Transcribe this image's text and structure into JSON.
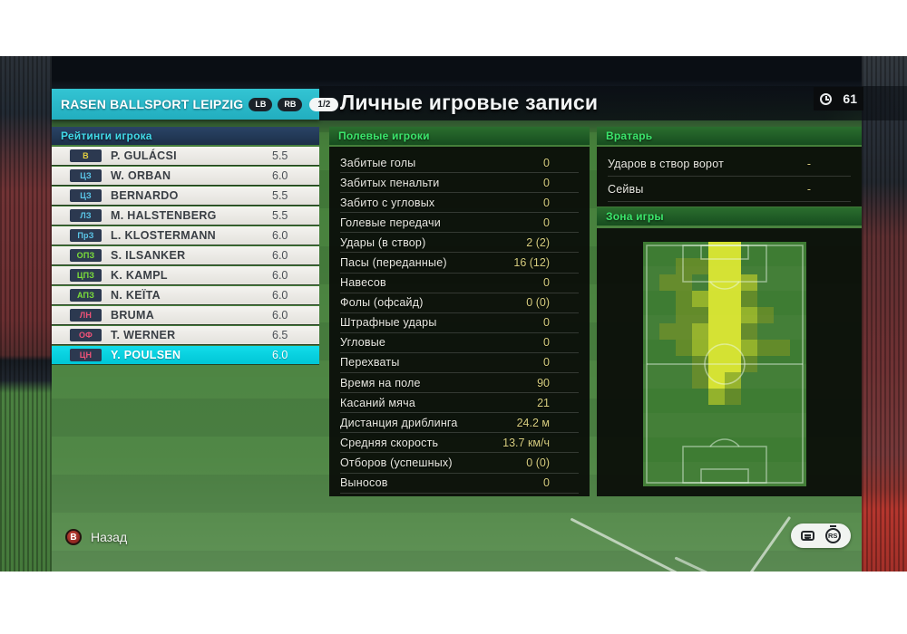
{
  "meta": {
    "match_minute": "61"
  },
  "page_title": "Личные игровые записи",
  "colors": {
    "accent_teal": "#2abccb",
    "selected_row": "#0fd7e6",
    "value_yellow": "#d6cd7f",
    "section_green_text": "#3be56b",
    "ratings_cyan_text": "#41d9e8",
    "badge_bg": "#2c3950",
    "pos_goalkeeper": "#e6d13f",
    "pos_defender": "#5bc6e8",
    "pos_midfielder": "#7de03a",
    "pos_forward": "#ef5277"
  },
  "team_panel": {
    "team_name": "RASEN BALLSPORT LEIPZIG",
    "prev_button": "LB",
    "next_button": "RB",
    "page_indicator": "1/2",
    "section_title": "Рейтинги игрока",
    "players": [
      {
        "pos": "В",
        "pos_color": "#e6d13f",
        "name": "P. GULÁCSI",
        "rating": "5.5",
        "selected": false
      },
      {
        "pos": "ЦЗ",
        "pos_color": "#5bc6e8",
        "name": "W. ORBAN",
        "rating": "6.0",
        "selected": false
      },
      {
        "pos": "ЦЗ",
        "pos_color": "#5bc6e8",
        "name": "BERNARDO",
        "rating": "5.5",
        "selected": false
      },
      {
        "pos": "ЛЗ",
        "pos_color": "#5bc6e8",
        "name": "M. HALSTENBERG",
        "rating": "5.5",
        "selected": false
      },
      {
        "pos": "ПрЗ",
        "pos_color": "#5bc6e8",
        "name": "L. KLOSTERMANN",
        "rating": "6.0",
        "selected": false
      },
      {
        "pos": "ОПЗ",
        "pos_color": "#7de03a",
        "name": "S. ILSANKER",
        "rating": "6.0",
        "selected": false
      },
      {
        "pos": "ЦПЗ",
        "pos_color": "#7de03a",
        "name": "K. KAMPL",
        "rating": "6.0",
        "selected": false
      },
      {
        "pos": "АПЗ",
        "pos_color": "#7de03a",
        "name": "N. KEÏTA",
        "rating": "6.0",
        "selected": false
      },
      {
        "pos": "ЛН",
        "pos_color": "#ef5277",
        "name": "BRUMA",
        "rating": "6.0",
        "selected": false
      },
      {
        "pos": "ОФ",
        "pos_color": "#ef5277",
        "name": "T. WERNER",
        "rating": "6.5",
        "selected": false
      },
      {
        "pos": "ЦН",
        "pos_color": "#ef5277",
        "name": "Y. POULSEN",
        "rating": "6.0",
        "selected": true
      }
    ]
  },
  "field_stats": {
    "section_title": "Полевые игроки",
    "rows": [
      {
        "label": "Забитые голы",
        "value": "0"
      },
      {
        "label": "Забитых пенальти",
        "value": "0"
      },
      {
        "label": "Забито с угловых",
        "value": "0"
      },
      {
        "label": "Голевые передачи",
        "value": "0"
      },
      {
        "label": "Удары (в створ)",
        "value": "2 (2)"
      },
      {
        "label": "Пасы (переданные)",
        "value": "16 (12)"
      },
      {
        "label": "Навесов",
        "value": "0"
      },
      {
        "label": "Фолы (офсайд)",
        "value": "0 (0)"
      },
      {
        "label": "Штрафные удары",
        "value": "0"
      },
      {
        "label": "Угловые",
        "value": "0"
      },
      {
        "label": "Перехваты",
        "value": "0"
      },
      {
        "label": "Время на поле",
        "value": "90"
      },
      {
        "label": "Касаний мяча",
        "value": "21"
      },
      {
        "label": "Дистанция дриблинга",
        "value": "24.2 м"
      },
      {
        "label": "Средняя скорость",
        "value": "13.7 км/ч"
      },
      {
        "label": "Отборов (успешных)",
        "value": "0 (0)"
      },
      {
        "label": "Выносов",
        "value": "0"
      }
    ]
  },
  "gk_stats": {
    "section_title": "Вратарь",
    "rows": [
      {
        "label": "Ударов в створ ворот",
        "value": "-"
      },
      {
        "label": "Сейвы",
        "value": "-"
      }
    ]
  },
  "zone": {
    "section_title": "Зона игры",
    "heat_colors": {
      "1": "rgba(150,160,30,0.42)",
      "2": "rgba(200,212,40,0.62)",
      "3": "rgba(224,234,52,0.93)"
    },
    "heatmap": [
      "0000330000",
      "0011330000",
      "0110332000",
      "0012331000",
      "0011332100",
      "0112331000",
      "0012332110",
      "0001331000",
      "0001320000",
      "0000210000",
      "0000000000",
      "0000000000",
      "0000000000",
      "0000000000",
      "0000000000"
    ]
  },
  "footer": {
    "back_button": "B",
    "back_label": "Назад",
    "rs_label": "RS"
  }
}
